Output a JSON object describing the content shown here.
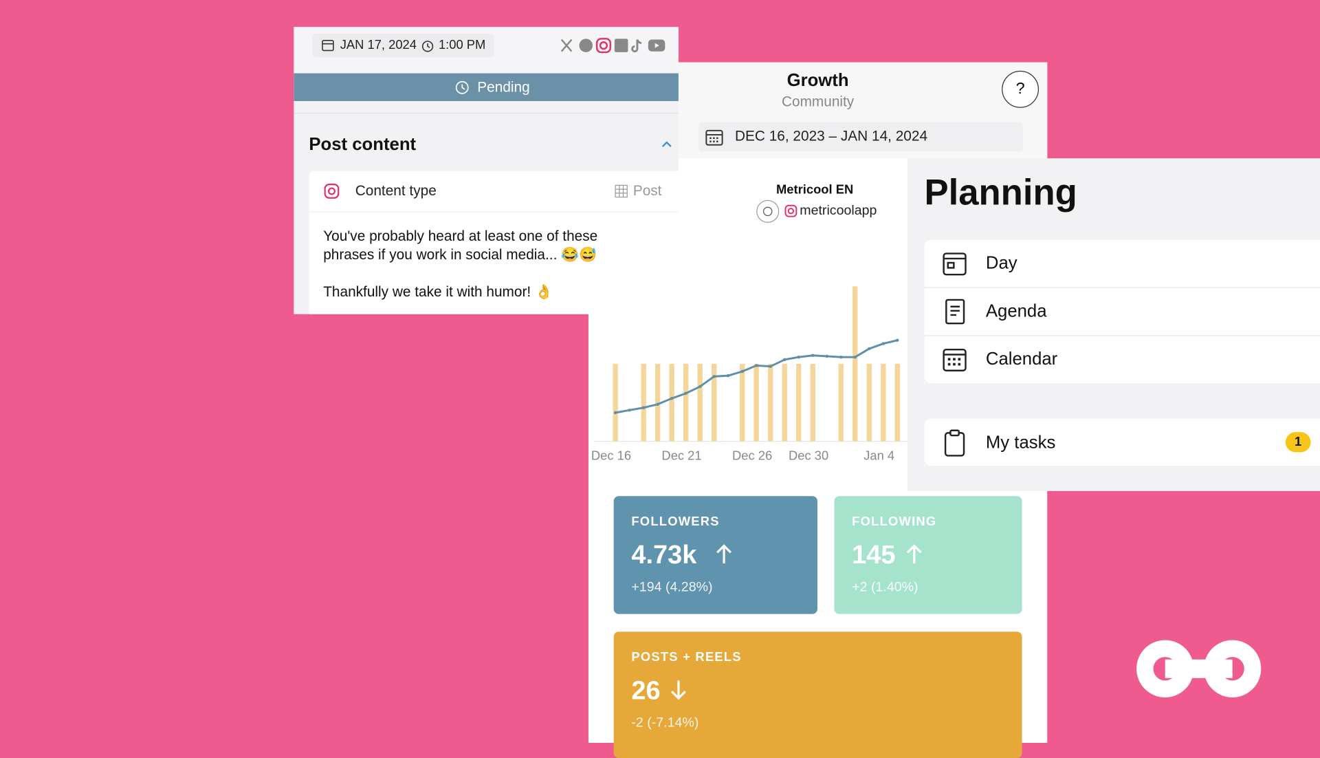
{
  "post": {
    "date": "JAN 17, 2024",
    "time": "1:00 PM",
    "status": "Pending",
    "section_title": "Post content",
    "content_type_label": "Content type",
    "content_type_value": "Post",
    "text_lines": [
      "You've probably heard at least one of these",
      "phrases if you work in social media... 😂😅",
      "Thankfully we take it with humor! 👌"
    ]
  },
  "growth": {
    "title": "Growth",
    "subtitle": "Community",
    "help": "?",
    "date_range": "DEC 16, 2023 – JAN 14, 2024",
    "account_name": "Metricool EN",
    "account_handle": "metricoolapp",
    "chart": {
      "type": "bar-line",
      "categories": [
        "Dec 16",
        null,
        null,
        null,
        null,
        "Dec 21",
        null,
        null,
        null,
        null,
        "Dec 26",
        null,
        null,
        null,
        "Dec 30",
        null,
        null,
        null,
        null,
        "Jan 4",
        null
      ],
      "bars": {
        "color": "#f5d69a",
        "values": [
          1,
          0,
          1,
          1,
          1,
          1,
          1,
          1,
          0,
          1,
          1,
          1,
          1,
          1,
          1,
          0,
          1,
          2,
          1,
          1,
          1
        ]
      },
      "line": {
        "color": "#5e8fa8",
        "values": [
          4540,
          4546,
          4552,
          4560,
          4574,
          4586,
          4602,
          4626,
          4628,
          4638,
          4652,
          4650,
          4666,
          4672,
          4676,
          4674,
          4672,
          4672,
          4692,
          4704,
          4712
        ]
      }
    },
    "stats": [
      {
        "label": "FOLLOWERS",
        "value": "4.73k",
        "change": "+194 (4.28%)",
        "trend": "up",
        "color": "#5f93ae"
      },
      {
        "label": "FOLLOWING",
        "value": "145",
        "change": "+2 (1.40%)",
        "trend": "up",
        "color": "#a6e3cd"
      },
      {
        "label": "POSTS + REELS",
        "value": "26",
        "change": "-2 (-7.14%)",
        "trend": "down",
        "color": "#e6a838"
      }
    ]
  },
  "planning": {
    "title": "Planning",
    "items": [
      "Day",
      "Agenda",
      "Calendar"
    ],
    "tasks_label": "My tasks",
    "tasks_count": 1
  }
}
